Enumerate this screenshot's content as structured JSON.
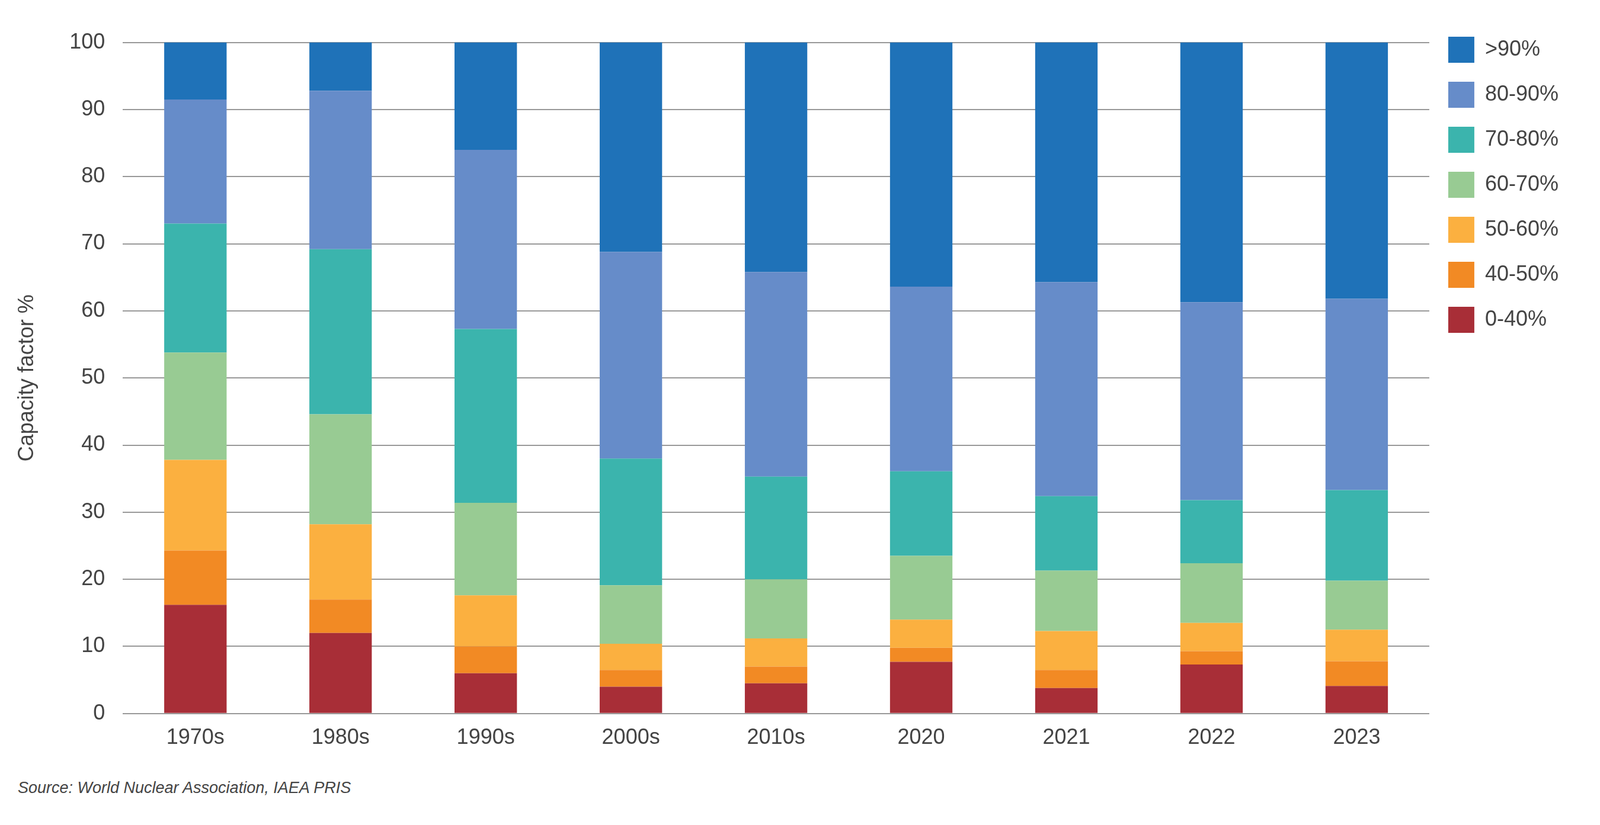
{
  "chart_data": {
    "type": "bar",
    "y_label": "Capacity factor %",
    "source": "Source: World Nuclear Association, IAEA PRIS",
    "categories": [
      "1970s",
      "1980s",
      "1990s",
      "2000s",
      "2010s",
      "2020",
      "2021",
      "2022",
      "2023"
    ],
    "series": [
      {
        "name": "0-40%",
        "color": "#a82e37",
        "values": [
          16.2,
          12.0,
          6.0,
          4.0,
          4.5,
          7.7,
          3.8,
          7.3,
          4.1
        ]
      },
      {
        "name": "40-50%",
        "color": "#f28a24",
        "values": [
          8.1,
          5.0,
          4.0,
          2.5,
          2.5,
          2.1,
          2.7,
          2.0,
          3.7
        ]
      },
      {
        "name": "50-60%",
        "color": "#fbb040",
        "values": [
          13.5,
          11.2,
          7.6,
          3.9,
          4.2,
          4.2,
          5.8,
          4.2,
          4.7
        ]
      },
      {
        "name": "60-70%",
        "color": "#98cb93",
        "values": [
          16.0,
          16.4,
          13.8,
          8.7,
          8.8,
          9.5,
          9.0,
          8.9,
          7.3
        ]
      },
      {
        "name": "70-80%",
        "color": "#3bb4ad",
        "values": [
          19.2,
          24.6,
          25.9,
          18.9,
          15.3,
          12.6,
          11.1,
          9.4,
          13.5
        ]
      },
      {
        "name": "80-90%",
        "color": "#668cc9",
        "values": [
          18.5,
          23.6,
          26.7,
          30.8,
          30.5,
          27.5,
          31.9,
          29.5,
          28.5
        ]
      },
      {
        "name": ">90%",
        "color": "#1f72b8",
        "values": [
          8.5,
          7.2,
          16.0,
          31.2,
          34.2,
          36.4,
          35.7,
          38.7,
          38.2
        ]
      }
    ],
    "ylim": [
      0,
      100
    ],
    "yticks": [
      0,
      10,
      20,
      30,
      40,
      50,
      60,
      70,
      80,
      90,
      100
    ],
    "stacked": true,
    "grid": true,
    "legend": "right"
  }
}
